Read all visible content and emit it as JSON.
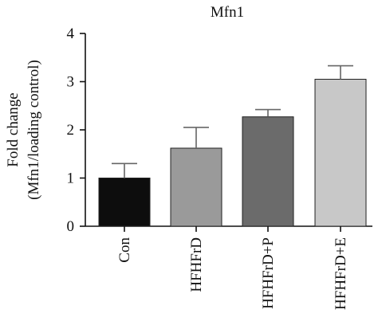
{
  "chart_data": {
    "type": "bar",
    "title": "Mfn1",
    "ylabel_line1": "Fold change",
    "ylabel_line2": "(Mfn1/loading control)",
    "xlabel": "",
    "categories": [
      "Con",
      "HFHFrD",
      "HFHFrD+P",
      "HFHFrD+E"
    ],
    "values": [
      1.0,
      1.62,
      2.27,
      3.05
    ],
    "errors": [
      0.3,
      0.43,
      0.15,
      0.28
    ],
    "bar_colors": [
      "#0d0d0d",
      "#9a9a9a",
      "#6b6b6b",
      "#c8c8c8"
    ],
    "ylim": [
      0,
      4
    ],
    "yticks": [
      0,
      1,
      2,
      3,
      4
    ],
    "grid": false
  }
}
